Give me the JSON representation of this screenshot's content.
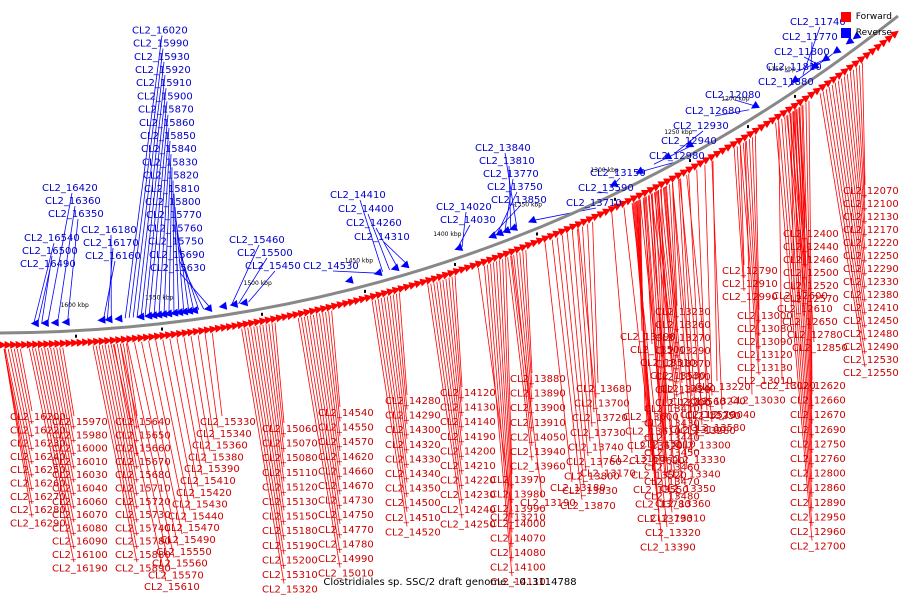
{
  "caption": "Clostridiales sp. SSC/2 draft genome. - 0..3114788",
  "legend": [
    {
      "label": "Forward",
      "color": "#ff0000"
    },
    {
      "label": "Reverse",
      "color": "#0000ff"
    }
  ],
  "colors": {
    "forward": "#ff0000",
    "reverse": "#0000ff",
    "forward_line": "#ff0000",
    "reverse_line": "#0000ff",
    "backbone": "#888888"
  },
  "ticks": [
    "1150 kbp",
    "1200 kbp",
    "1250 kbp",
    "1300 kbp",
    "1350 kbp",
    "1400 kbp",
    "1450 kbp",
    "1500 kbp",
    "1550 kbp",
    "1600 kbp"
  ],
  "reverse_labels": [
    "CL2_11740",
    "CL2_11770",
    "CL2_11800",
    "CL2_11810",
    "CL2_11880",
    "CL2_12080",
    "CL2_12680",
    "CL2_12930",
    "CL2_12940",
    "CL2_12980",
    "CL2_13150",
    "CL2_13590",
    "CL2_13710",
    "CL2_13840",
    "CL2_13810",
    "CL2_13770",
    "CL2_13750",
    "CL2_13850",
    "CL2_14020",
    "CL2_14030",
    "CL2_14410",
    "CL2_14400",
    "CL2_14260",
    "CL2_14310",
    "CL2_14530",
    "CL2_15450",
    "CL2_15500",
    "CL2_15460",
    "CL2_15630",
    "CL2_15690",
    "CL2_15750",
    "CL2_15760",
    "CL2_15770",
    "CL2_15800",
    "CL2_15810",
    "CL2_15820",
    "CL2_15830",
    "CL2_15840",
    "CL2_15850",
    "CL2_15860",
    "CL2_15870",
    "CL2_15900",
    "CL2_15910",
    "CL2_15920",
    "CL2_15930",
    "CL2_15990",
    "CL2_16020",
    "CL2_16160",
    "CL2_16170",
    "CL2_16180",
    "CL2_16350",
    "CL2_16360",
    "CL2_16420",
    "CL2_16490",
    "CL2_16500",
    "CL2_16540"
  ],
  "forward_labels": [
    "CL2_12070",
    "CL2_12100",
    "CL2_12130",
    "CL2_12170",
    "CL2_12220",
    "CL2_12250",
    "CL2_12290",
    "CL2_12330",
    "CL2_12380",
    "CL2_12410",
    "CL2_12450",
    "CL2_12480",
    "CL2_12490",
    "CL2_12530",
    "CL2_12550",
    "CL2_12400",
    "CL2_12440",
    "CL2_12460",
    "CL2_12500",
    "CL2_12520",
    "CL2_12570",
    "CL2_12600",
    "CL2_12610",
    "CL2_12650",
    "CL2_12780",
    "CL2_12850",
    "CL2_12620",
    "CL2_12660",
    "CL2_12670",
    "CL2_12690",
    "CL2_12750",
    "CL2_12760",
    "CL2_12800",
    "CL2_12860",
    "CL2_12890",
    "CL2_12950",
    "CL2_12960",
    "CL2_12700",
    "CL2_12790",
    "CL2_12910",
    "CL2_12990",
    "CL2_13000",
    "CL2_13080",
    "CL2_13090",
    "CL2_13120",
    "CL2_13130",
    "CL2_13010",
    "CL2_13020",
    "CL2_13030",
    "CL2_13040",
    "CL2_13100",
    "CL2_13110",
    "CL2_13160",
    "CL2_13170",
    "CL2_13180",
    "CL2_13190",
    "CL2_13210",
    "CL2_13230",
    "CL2_13260",
    "CL2_13270",
    "CL2_13290",
    "CL2_13370",
    "CL2_13400",
    "CL2_13420",
    "CL2_13200",
    "CL2_13220",
    "CL2_13240",
    "CL2_13250",
    "CL2_13280",
    "CL2_13300",
    "CL2_13330",
    "CL2_13340",
    "CL2_13350",
    "CL2_13360",
    "CL2_13310",
    "CL2_13320",
    "CL2_13390",
    "CL2_13410",
    "CL2_13430",
    "CL2_13440",
    "CL2_13450",
    "CL2_13460",
    "CL2_13470",
    "CL2_13480",
    "CL2_13490",
    "CL2_13500",
    "CL2_13510",
    "CL2_13530",
    "CL2_13540",
    "CL2_13560",
    "CL2_13570",
    "CL2_13580",
    "CL2_13600",
    "CL2_13610",
    "CL2_13620",
    "CL2_13690",
    "CL2_13520",
    "CL2_13550",
    "CL2_13780",
    "CL2_13790",
    "CL2_13680",
    "CL2_13700",
    "CL2_13720",
    "CL2_13730",
    "CL2_13740",
    "CL2_13760",
    "CL2_13800",
    "CL2_13830",
    "CL2_13870",
    "CL2_13880",
    "CL2_13890",
    "CL2_13900",
    "CL2_13910",
    "CL2_14050",
    "CL2_13940",
    "CL2_13960",
    "CL2_13970",
    "CL2_13980",
    "CL2_13990",
    "CL2_14000",
    "CL2_14070",
    "CL2_14080",
    "CL2_14100",
    "CL2_14110",
    "CL2_14120",
    "CL2_14130",
    "CL2_14140",
    "CL2_14190",
    "CL2_14200",
    "CL2_14210",
    "CL2_14220",
    "CL2_14230",
    "CL2_14240",
    "CL2_14250",
    "CL2_14280",
    "CL2_14290",
    "CL2_14300",
    "CL2_14320",
    "CL2_14330",
    "CL2_14340",
    "CL2_14350",
    "CL2_14500",
    "CL2_14510",
    "CL2_14520",
    "CL2_14540",
    "CL2_14550",
    "CL2_14570",
    "CL2_14620",
    "CL2_14660",
    "CL2_14670",
    "CL2_14730",
    "CL2_14750",
    "CL2_14770",
    "CL2_14780",
    "CL2_14990",
    "CL2_15010",
    "CL2_15060",
    "CL2_15070",
    "CL2_15080",
    "CL2_15110",
    "CL2_15120",
    "CL2_15130",
    "CL2_15150",
    "CL2_15180",
    "CL2_15190",
    "CL2_15200",
    "CL2_15310",
    "CL2_15320",
    "CL2_15330",
    "CL2_15340",
    "CL2_15360",
    "CL2_15380",
    "CL2_15390",
    "CL2_15410",
    "CL2_15420",
    "CL2_15430",
    "CL2_15440",
    "CL2_15470",
    "CL2_15490",
    "CL2_15550",
    "CL2_15560",
    "CL2_15570",
    "CL2_15610",
    "CL2_15640",
    "CL2_15650",
    "CL2_15660",
    "CL2_15670",
    "CL2_15680",
    "CL2_15710",
    "CL2_15720",
    "CL2_15730",
    "CL2_15740",
    "CL2_15780",
    "CL2_15880",
    "CL2_15890",
    "CL2_15970",
    "CL2_15980",
    "CL2_16000",
    "CL2_16010",
    "CL2_16030",
    "CL2_16040",
    "CL2_16060",
    "CL2_16070",
    "CL2_16080",
    "CL2_16090",
    "CL2_16100",
    "CL2_16190",
    "CL2_16200",
    "CL2_16220",
    "CL2_16230",
    "CL2_16240",
    "CL2_16250",
    "CL2_16260",
    "CL2_16270",
    "CL2_16280",
    "CL2_16290",
    "CL2_16300",
    "CL2_16310",
    "CL2_16320",
    "CL2_16460",
    "CL2_16470",
    "CL2_16480"
  ]
}
